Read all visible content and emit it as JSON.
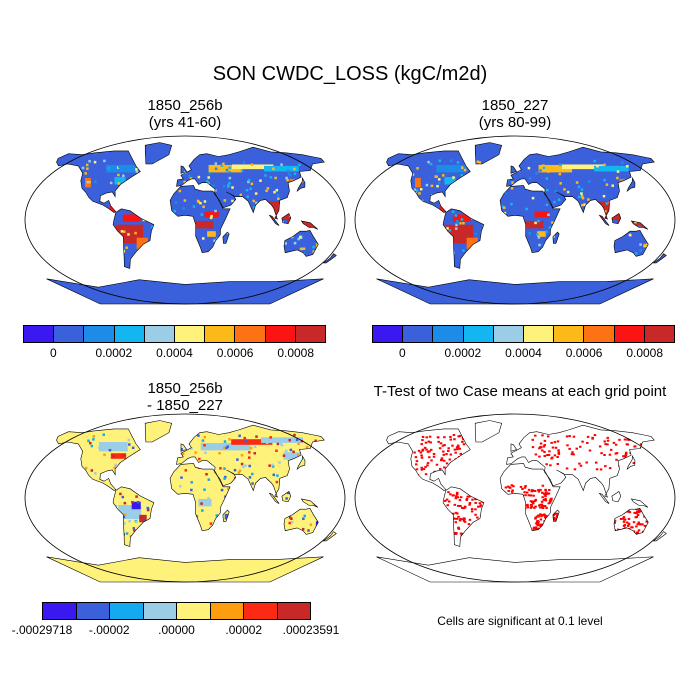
{
  "title": "SON CWDC_LOSS (kgC/m2d)",
  "panels": [
    {
      "id": "p1",
      "line1": "1850_256b",
      "line2": "(yrs 41-60)"
    },
    {
      "id": "p2",
      "line1": "1850_227",
      "line2": "(yrs 80-99)"
    },
    {
      "id": "p3",
      "line1": "1850_256b",
      "line2": "- 1850_227"
    },
    {
      "id": "p4",
      "line1": "T-Test of two Case means at each grid point",
      "line2": ""
    }
  ],
  "colorbar_top": {
    "colors": [
      "#3a18f0",
      "#3a60dc",
      "#1d8ce8",
      "#13b6f0",
      "#9ccde6",
      "#fff27a",
      "#fdb918",
      "#fd7314",
      "#fb1414",
      "#c82828"
    ],
    "labels": [
      "0",
      "0.0002",
      "0.0004",
      "0.0006",
      "0.0008"
    ]
  },
  "colorbar_bottom": {
    "colors": [
      "#3a18f0",
      "#3a60dc",
      "#13aaf0",
      "#9ccde6",
      "#fff27a",
      "#fd9e10",
      "#fb2a14",
      "#c82828"
    ],
    "labels": [
      "-.00029718",
      "-.00002",
      ".00000",
      ".00002",
      ".00023591"
    ]
  },
  "ttest_note": "Cells are significant at 0.1 level",
  "map_colors": {
    "ocean": "#ffffff",
    "base_low": "#3a60dc",
    "diff_base": "#fff27a",
    "sig": "#ff0000"
  }
}
